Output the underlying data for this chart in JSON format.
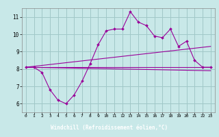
{
  "background_color": "#c8e8e8",
  "line_color": "#990099",
  "grid_color": "#a0c8c8",
  "xlim": [
    -0.5,
    23.5
  ],
  "ylim": [
    5.5,
    11.5
  ],
  "yticks": [
    6,
    7,
    8,
    9,
    10,
    11
  ],
  "xticks": [
    0,
    1,
    2,
    3,
    4,
    5,
    6,
    7,
    8,
    9,
    10,
    11,
    12,
    13,
    14,
    15,
    16,
    17,
    18,
    19,
    20,
    21,
    22,
    23
  ],
  "xlabel": "Windchill (Refroidissement éolien,°C)",
  "xlabel_bg": "#880088",
  "lines": [
    {
      "x": [
        0,
        1,
        2,
        3,
        4,
        5,
        6,
        7,
        8,
        9,
        10,
        11,
        12,
        13,
        14,
        15,
        16,
        17,
        18,
        19,
        20,
        21,
        22,
        23
      ],
      "y": [
        8.1,
        8.1,
        7.8,
        6.8,
        6.2,
        6.0,
        6.5,
        7.3,
        8.3,
        9.4,
        10.2,
        10.3,
        10.3,
        11.3,
        10.7,
        10.5,
        9.9,
        9.8,
        10.3,
        9.3,
        9.6,
        8.5,
        8.1,
        8.1
      ],
      "marker": true
    },
    {
      "x": [
        0,
        23
      ],
      "y": [
        8.1,
        8.1
      ],
      "marker": false
    },
    {
      "x": [
        0,
        23
      ],
      "y": [
        8.1,
        9.3
      ],
      "marker": false
    },
    {
      "x": [
        0,
        23
      ],
      "y": [
        8.1,
        7.9
      ],
      "marker": false
    }
  ]
}
